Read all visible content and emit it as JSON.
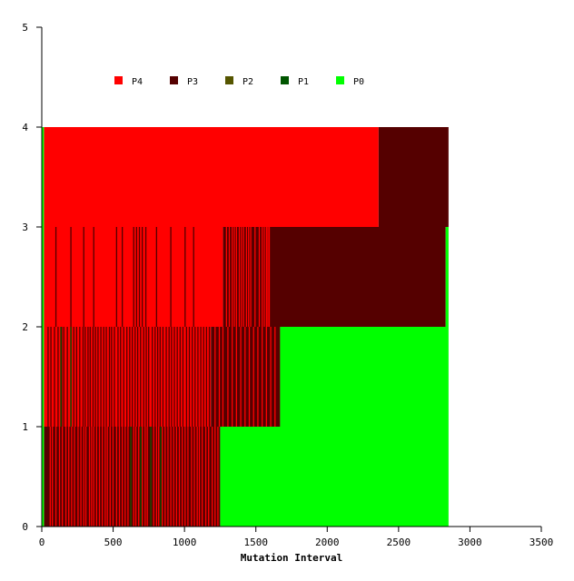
{
  "chart_data": {
    "type": "bar",
    "title": "",
    "xlabel": "Mutation Interval",
    "ylabel": "",
    "xlim": [
      0,
      3500
    ],
    "ylim": [
      0,
      5
    ],
    "xticks": [
      0,
      500,
      1000,
      1500,
      2000,
      2500,
      3000,
      3500
    ],
    "yticks": [
      0,
      1,
      2,
      3,
      4,
      5
    ],
    "legend_placement": "top-left",
    "grid": false,
    "series": [
      {
        "name": "P4",
        "color": "#ff0000"
      },
      {
        "name": "P3",
        "color": "#550000"
      },
      {
        "name": "P2",
        "color": "#555500"
      },
      {
        "name": "P1",
        "color": "#005500"
      },
      {
        "name": "P0",
        "color": "#00ff00"
      }
    ],
    "regions": [
      {
        "x0": 15,
        "x1": 2360,
        "level": 3,
        "series": "P4"
      },
      {
        "x0": 2360,
        "x1": 2850,
        "level": 3,
        "series": "P3"
      },
      {
        "x0": 15,
        "x1": 1270,
        "level": 2,
        "series": "P4"
      },
      {
        "x0": 1270,
        "x1": 2830,
        "level": 2,
        "series": "P3"
      },
      {
        "x0": 2830,
        "x1": 2850,
        "level": 2,
        "series": "P0"
      },
      {
        "x0": 15,
        "x1": 1185,
        "level": 1,
        "series": "P4"
      },
      {
        "x0": 1185,
        "x1": 1670,
        "level": 1,
        "series": "P3"
      },
      {
        "x0": 1670,
        "x1": 2850,
        "level": 1,
        "series": "P0"
      },
      {
        "x0": 15,
        "x1": 1250,
        "level": 0,
        "series": "P3"
      },
      {
        "x0": 1250,
        "x1": 2850,
        "level": 0,
        "series": "P0"
      },
      {
        "x0": 0,
        "x1": 15,
        "level": 0,
        "series": "P0"
      },
      {
        "x0": 0,
        "x1": 15,
        "level": 1,
        "series": "P0"
      },
      {
        "x0": 0,
        "x1": 15,
        "level": 2,
        "series": "P0"
      },
      {
        "x0": 0,
        "x1": 15,
        "level": 3,
        "series": "P0"
      }
    ],
    "stripes": [
      {
        "level": 0,
        "series": "P4",
        "x": [
          55,
          70,
          95,
          120,
          140,
          165,
          185,
          205,
          225,
          250,
          270,
          290,
          305,
          330,
          345,
          360,
          380,
          400,
          420,
          440,
          455,
          475,
          495,
          520,
          540,
          560,
          580,
          600,
          620,
          640,
          655,
          675,
          700,
          720,
          735,
          760,
          780,
          800,
          815,
          840,
          860,
          880,
          900,
          920,
          940,
          960,
          980,
          1000,
          1020,
          1045,
          1065,
          1085,
          1100,
          1120,
          1145,
          1165,
          1190,
          1210,
          1230
        ]
      },
      {
        "level": 0,
        "series": "P1",
        "x": [
          620,
          690,
          760,
          830
        ]
      },
      {
        "level": 1,
        "series": "P3",
        "x": [
          40,
          60,
          85,
          110,
          135,
          150,
          175,
          200,
          220,
          240,
          262,
          285,
          300,
          320,
          335,
          355,
          372,
          390,
          410,
          430,
          448,
          470,
          485,
          505,
          530,
          548,
          570,
          592,
          612,
          630,
          650,
          668,
          688,
          710,
          728,
          745,
          770,
          790,
          808,
          825,
          845,
          868,
          888,
          905,
          925,
          945,
          965,
          985,
          1010,
          1030,
          1050,
          1070,
          1090,
          1110,
          1130,
          1150,
          1170
        ]
      },
      {
        "level": 1,
        "series": "P1",
        "x": [
          130,
          200
        ]
      },
      {
        "level": 1,
        "series": "P4",
        "x": [
          1210,
          1240,
          1265,
          1300,
          1330,
          1360,
          1390,
          1420,
          1450,
          1480,
          1510,
          1540,
          1570,
          1600,
          1630
        ]
      },
      {
        "level": 2,
        "series": "P3",
        "x": [
          95,
          200,
          290,
          360,
          520,
          560,
          640,
          660,
          680,
          700,
          725,
          800,
          900,
          1000,
          1060
        ]
      },
      {
        "level": 2,
        "series": "P4",
        "x": [
          1290,
          1310,
          1330,
          1345,
          1360,
          1380,
          1395,
          1410,
          1430,
          1445,
          1460,
          1490,
          1520,
          1540,
          1555,
          1570,
          1580,
          1590
        ]
      }
    ]
  }
}
